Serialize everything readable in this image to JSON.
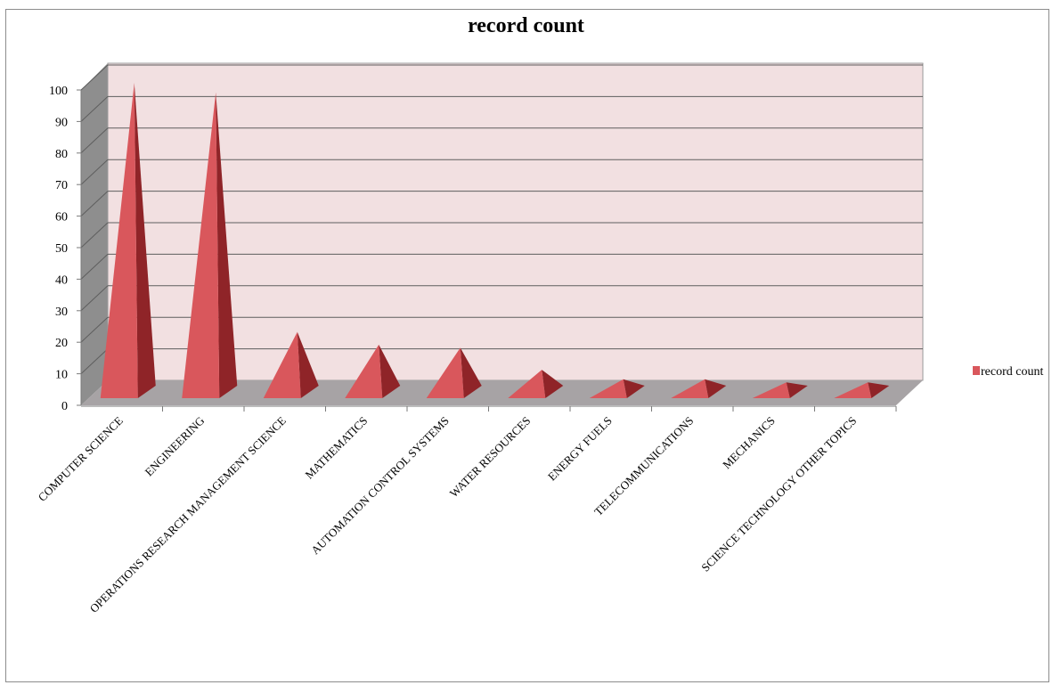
{
  "chart_data": {
    "type": "bar",
    "title": "record count",
    "categories": [
      "COMPUTER SCIENCE",
      "ENGINEERING",
      "OPERATIONS RESEARCH MANAGEMENT  SCIENCE",
      "MATHEMATICS",
      "AUTOMATION CONTROL SYSTEMS",
      "WATER RESOURCES",
      "ENERGY FUELS",
      "TELECOMMUNICATIONS",
      "MECHANICS",
      "SCIENCE TECHNOLOGY  OTHER TOPICS"
    ],
    "series": [
      {
        "name": "record count",
        "values": [
          100,
          97,
          21,
          17,
          16,
          9,
          6,
          6,
          5,
          5
        ]
      }
    ],
    "ylim": [
      0,
      100
    ],
    "yticks": [
      0,
      10,
      20,
      30,
      40,
      50,
      60,
      70,
      80,
      90,
      100
    ],
    "grid": true,
    "legend": "right",
    "bar_shape": "3d-pyramid",
    "colors": {
      "bar_front": "#d9575c",
      "bar_side": "#8f2428",
      "back_wall": "#f2e0e1",
      "side_wall": "#8e8e8e",
      "floor": "#a7a3a5",
      "gridline": "#5e5e5e"
    }
  }
}
